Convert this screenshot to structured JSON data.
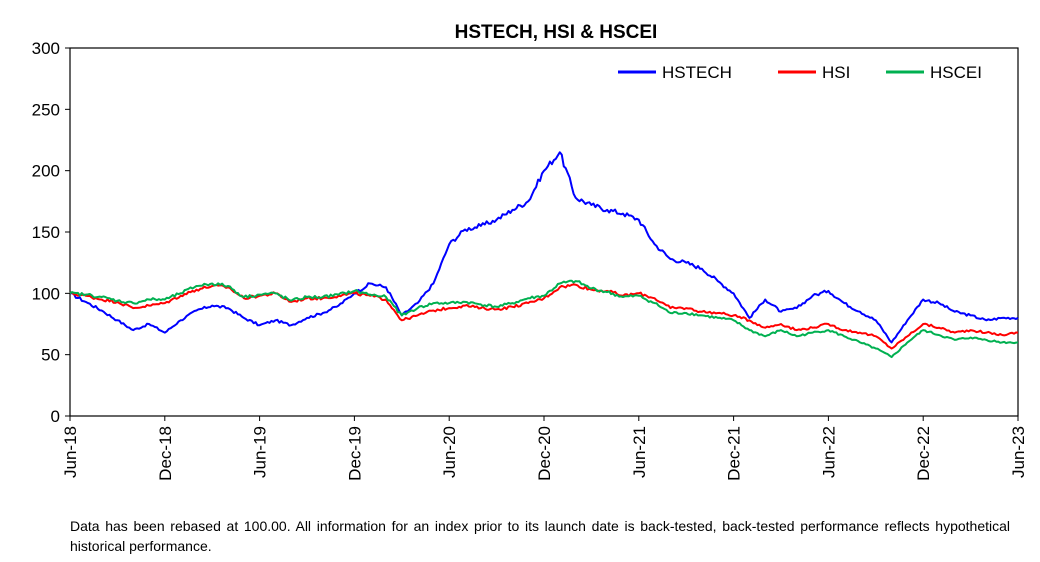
{
  "chart_data": {
    "type": "line",
    "title": "HSTECH, HSI & HSCEI",
    "xlabel": "",
    "ylabel": "",
    "ylim": [
      0,
      300
    ],
    "yticks": [
      "0",
      "50",
      "100",
      "150",
      "200",
      "250",
      "300"
    ],
    "xticks": [
      "Jun-18",
      "Dec-18",
      "Jun-19",
      "Dec-19",
      "Jun-20",
      "Dec-20",
      "Jun-21",
      "Dec-21",
      "Jun-22",
      "Dec-22",
      "Jun-23"
    ],
    "grid": false,
    "legend": "top-right",
    "x": [
      "Jun-18",
      "Jul-18",
      "Aug-18",
      "Sep-18",
      "Oct-18",
      "Nov-18",
      "Dec-18",
      "Jan-19",
      "Feb-19",
      "Mar-19",
      "Apr-19",
      "May-19",
      "Jun-19",
      "Jul-19",
      "Aug-19",
      "Sep-19",
      "Oct-19",
      "Nov-19",
      "Dec-19",
      "Jan-20",
      "Feb-20",
      "Mar-20",
      "Apr-20",
      "May-20",
      "Jun-20",
      "Jul-20",
      "Aug-20",
      "Sep-20",
      "Oct-20",
      "Nov-20",
      "Dec-20",
      "Jan-21",
      "Feb-21",
      "Mar-21",
      "Apr-21",
      "May-21",
      "Jun-21",
      "Jul-21",
      "Aug-21",
      "Sep-21",
      "Oct-21",
      "Nov-21",
      "Dec-21",
      "Jan-22",
      "Feb-22",
      "Mar-22",
      "Apr-22",
      "May-22",
      "Jun-22",
      "Jul-22",
      "Aug-22",
      "Sep-22",
      "Oct-22",
      "Nov-22",
      "Dec-22",
      "Jan-23",
      "Feb-23",
      "Mar-23",
      "Apr-23",
      "May-23",
      "Jun-23"
    ],
    "series": [
      {
        "name": "HSTECH",
        "color": "#0000ff",
        "values": [
          100,
          93,
          86,
          78,
          70,
          75,
          68,
          78,
          86,
          90,
          88,
          80,
          74,
          78,
          74,
          80,
          84,
          90,
          100,
          108,
          105,
          82,
          92,
          108,
          140,
          152,
          155,
          160,
          168,
          175,
          200,
          215,
          178,
          172,
          168,
          165,
          160,
          140,
          128,
          125,
          120,
          110,
          100,
          80,
          95,
          85,
          88,
          98,
          102,
          92,
          85,
          78,
          60,
          78,
          95,
          92,
          85,
          82,
          78,
          80,
          80
        ]
      },
      {
        "name": "HSI",
        "color": "#ff0000",
        "values": [
          100,
          98,
          95,
          93,
          88,
          90,
          92,
          98,
          103,
          106,
          105,
          96,
          98,
          100,
          93,
          96,
          96,
          98,
          100,
          98,
          95,
          78,
          82,
          86,
          88,
          90,
          88,
          87,
          89,
          92,
          96,
          105,
          107,
          103,
          102,
          98,
          100,
          96,
          88,
          88,
          85,
          84,
          82,
          78,
          72,
          75,
          70,
          72,
          75,
          70,
          68,
          65,
          55,
          65,
          75,
          72,
          68,
          70,
          68,
          66,
          68
        ]
      },
      {
        "name": "HSCEI",
        "color": "#00b050",
        "values": [
          100,
          99,
          97,
          94,
          92,
          95,
          95,
          100,
          106,
          108,
          106,
          97,
          99,
          100,
          94,
          97,
          97,
          99,
          102,
          99,
          97,
          82,
          88,
          92,
          92,
          93,
          91,
          89,
          92,
          96,
          98,
          108,
          110,
          104,
          101,
          97,
          98,
          92,
          84,
          84,
          82,
          80,
          78,
          70,
          65,
          70,
          65,
          68,
          70,
          65,
          60,
          55,
          48,
          60,
          70,
          66,
          62,
          64,
          62,
          60,
          60
        ]
      }
    ]
  },
  "footnote": "Data has been rebased at 100.00. All information for an index prior to its launch date is back-tested, back-tested performance reflects hypothetical historical performance."
}
